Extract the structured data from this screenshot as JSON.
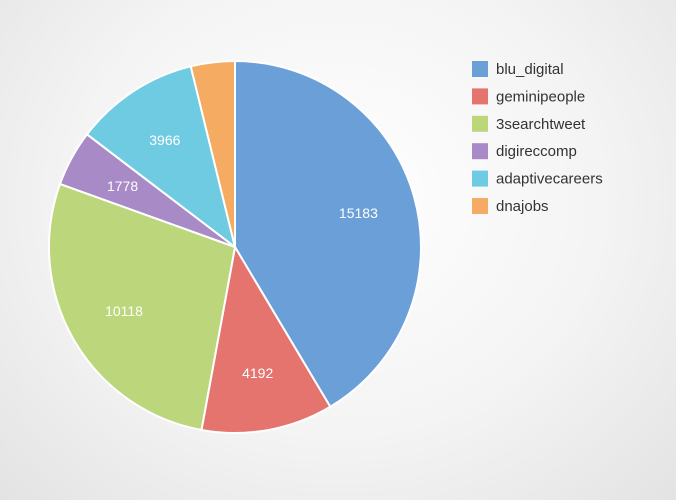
{
  "chart_data": {
    "type": "pie",
    "slices": [
      {
        "label": "blu_digital",
        "value": 15183,
        "color": "#6a9fd8",
        "show_value": true
      },
      {
        "label": "geminipeople",
        "value": 4192,
        "color": "#e5736e",
        "show_value": true
      },
      {
        "label": "3searchtweet",
        "value": 10118,
        "color": "#bcd67c",
        "show_value": true
      },
      {
        "label": "digireccomp",
        "value": 1778,
        "color": "#a78ac6",
        "show_value": true
      },
      {
        "label": "adaptivecareers",
        "value": 3966,
        "color": "#6fcbe2",
        "show_value": true
      },
      {
        "label": "dnajobs",
        "value": 1400,
        "color": "#f5ab62",
        "show_value": false
      }
    ],
    "start_angle": "top",
    "direction": "clockwise",
    "legend_position": "right"
  }
}
